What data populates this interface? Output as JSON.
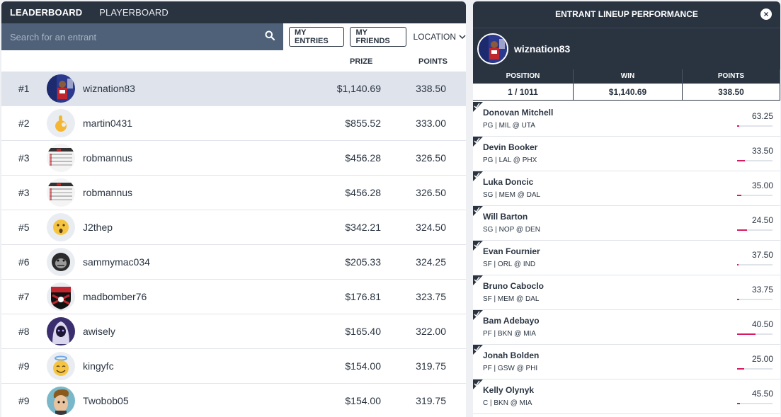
{
  "nav": {
    "tab_leaderboard": "LEADERBOARD",
    "tab_playerboard": "PLAYERBOARD"
  },
  "search": {
    "placeholder": "Search for an entrant"
  },
  "filters": {
    "my_entries": "MY ENTRIES",
    "my_friends": "MY FRIENDS",
    "location": "LOCATION"
  },
  "columns": {
    "prize": "PRIZE",
    "points": "POINTS"
  },
  "entries": [
    {
      "rank": "#1",
      "username": "wiznation83",
      "prize": "$1,140.69",
      "points": "338.50",
      "avatar": "player-photo-avatar"
    },
    {
      "rank": "#2",
      "username": "martin0431",
      "prize": "$855.52",
      "points": "333.00",
      "avatar": "ok-hand-emoji-avatar"
    },
    {
      "rank": "#3",
      "username": "robmannus",
      "prize": "$456.28",
      "points": "326.50",
      "avatar": "screenshot-avatar"
    },
    {
      "rank": "#3",
      "username": "robmannus",
      "prize": "$456.28",
      "points": "326.50",
      "avatar": "screenshot-avatar"
    },
    {
      "rank": "#5",
      "username": "J2thep",
      "prize": "$342.21",
      "points": "324.50",
      "avatar": "surprised-emoji-avatar"
    },
    {
      "rank": "#6",
      "username": "sammymac034",
      "prize": "$205.33",
      "points": "324.25",
      "avatar": "gorilla-avatar"
    },
    {
      "rank": "#7",
      "username": "madbomber76",
      "prize": "$176.81",
      "points": "323.75",
      "avatar": "bombers-logo-avatar"
    },
    {
      "rank": "#8",
      "username": "awisely",
      "prize": "$165.40",
      "points": "322.00",
      "avatar": "hooded-figure-avatar"
    },
    {
      "rank": "#9",
      "username": "kingyfc",
      "prize": "$154.00",
      "points": "319.75",
      "avatar": "angel-emoji-avatar"
    },
    {
      "rank": "#9",
      "username": "Twobob05",
      "prize": "$154.00",
      "points": "319.75",
      "avatar": "cartoon-avatar"
    }
  ],
  "panel": {
    "title": "ENTRANT LINEUP PERFORMANCE",
    "username": "wiznation83",
    "stats": {
      "position_label": "POSITION",
      "position_value": "1 / 1011",
      "win_label": "WIN",
      "win_value": "$1,140.69",
      "points_label": "POINTS",
      "points_value": "338.50"
    },
    "players": [
      {
        "name": "Donovan Mitchell",
        "meta": "PG | MIL @ UTA",
        "points": "63.25",
        "progress": 0.06
      },
      {
        "name": "Devin Booker",
        "meta": "PG | LAL @ PHX",
        "points": "33.50",
        "progress": 0.22
      },
      {
        "name": "Luka Doncic",
        "meta": "SG | MEM @ DAL",
        "points": "35.00",
        "progress": 0.12
      },
      {
        "name": "Will Barton",
        "meta": "SG | NOP @ DEN",
        "points": "24.50",
        "progress": 0.28
      },
      {
        "name": "Evan Fournier",
        "meta": "SF | ORL @ IND",
        "points": "37.50",
        "progress": 0.04
      },
      {
        "name": "Bruno Caboclo",
        "meta": "SF | MEM @ DAL",
        "points": "33.75",
        "progress": 0.06
      },
      {
        "name": "Bam Adebayo",
        "meta": "PF | BKN @ MIA",
        "points": "40.50",
        "progress": 0.52
      },
      {
        "name": "Jonah Bolden",
        "meta": "PF | GSW @ PHI",
        "points": "25.00",
        "progress": 0.2
      },
      {
        "name": "Kelly Olynyk",
        "meta": "C | BKN @ MIA",
        "points": "45.50",
        "progress": 0.08
      }
    ]
  }
}
